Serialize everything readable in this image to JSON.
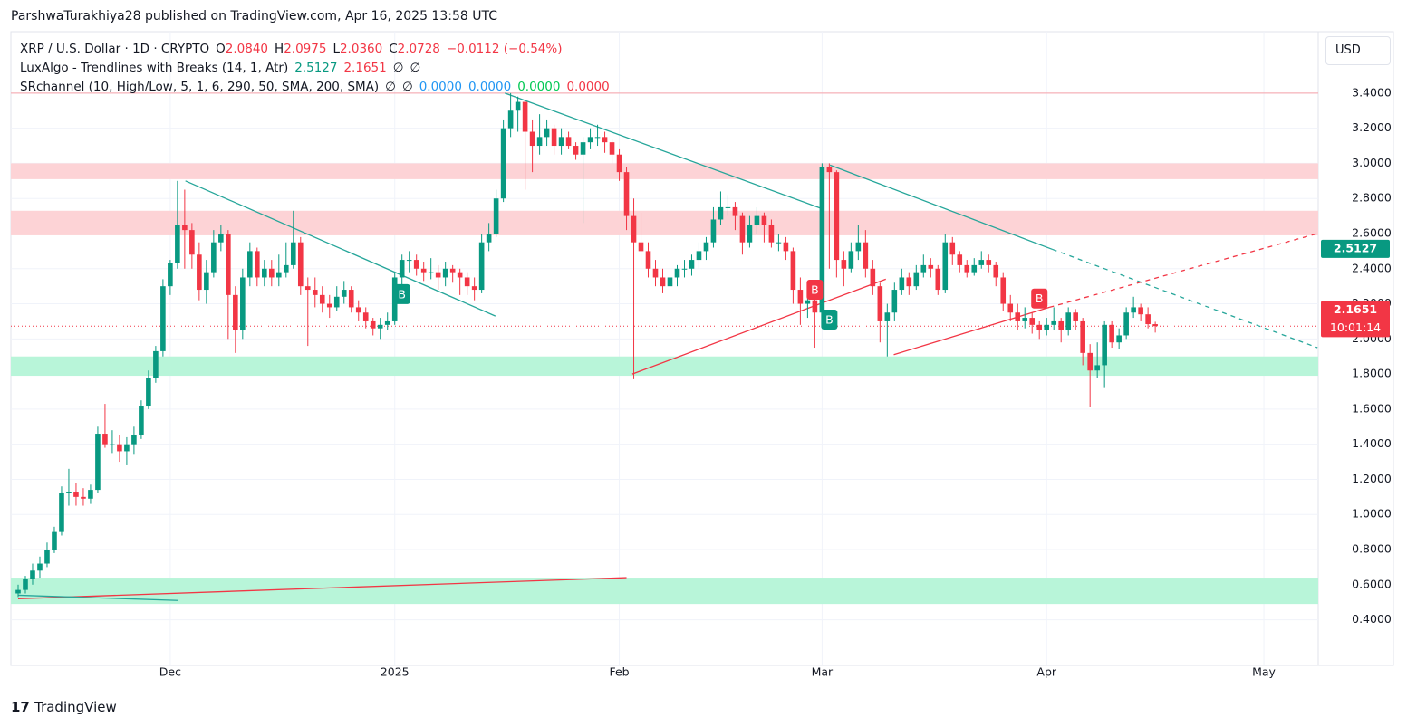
{
  "header": "ParshwaTurakhiya28 published on TradingView.com, Apr 16, 2025 13:58 UTC",
  "footer": "TradingView",
  "currency": "USD",
  "legend": [
    [
      {
        "text": "XRP / U.S. Dollar · 1D · CRYPTO",
        "color": "#131722"
      },
      {
        "text": "O",
        "color": "#131722"
      },
      {
        "text": "2.0840",
        "color": "#f23645"
      },
      {
        "text": "H",
        "color": "#131722"
      },
      {
        "text": "2.0975",
        "color": "#f23645"
      },
      {
        "text": "L",
        "color": "#131722"
      },
      {
        "text": "2.0360",
        "color": "#f23645"
      },
      {
        "text": "C",
        "color": "#131722"
      },
      {
        "text": "2.0728",
        "color": "#f23645"
      },
      {
        "text": "−0.0112 (−0.54%)",
        "color": "#f23645"
      }
    ],
    [
      {
        "text": "LuxAlgo - Trendlines with Breaks (14, 1, Atr)",
        "color": "#131722"
      },
      {
        "text": "2.5127",
        "color": "#089981"
      },
      {
        "text": "2.1651",
        "color": "#f23645"
      },
      {
        "text": "∅",
        "color": "#131722"
      },
      {
        "text": "∅",
        "color": "#131722"
      }
    ],
    [
      {
        "text": "SRchannel (10, High/Low, 5, 1, 6, 290, 50, SMA, 200, SMA)",
        "color": "#131722"
      },
      {
        "text": "∅",
        "color": "#131722"
      },
      {
        "text": "∅",
        "color": "#131722"
      },
      {
        "text": "0.0000",
        "color": "#2196f3"
      },
      {
        "text": "0.0000",
        "color": "#2196f3"
      },
      {
        "text": "0.0000",
        "color": "#00c853"
      },
      {
        "text": "0.0000",
        "color": "#f23645"
      }
    ]
  ],
  "chart_data": {
    "type": "candlestick",
    "up_color": "#089981",
    "down_color": "#f23645",
    "candles": [
      [
        0.55,
        0.6,
        0.53,
        0.57
      ],
      [
        0.57,
        0.65,
        0.55,
        0.63
      ],
      [
        0.63,
        0.72,
        0.6,
        0.68
      ],
      [
        0.68,
        0.76,
        0.64,
        0.72
      ],
      [
        0.72,
        0.84,
        0.7,
        0.8
      ],
      [
        0.8,
        0.93,
        0.78,
        0.9
      ],
      [
        0.9,
        1.16,
        0.88,
        1.12
      ],
      [
        1.12,
        1.26,
        1.05,
        1.13
      ],
      [
        1.13,
        1.18,
        1.05,
        1.1
      ],
      [
        1.1,
        1.15,
        1.05,
        1.09
      ],
      [
        1.09,
        1.17,
        1.06,
        1.14
      ],
      [
        1.14,
        1.5,
        1.12,
        1.46
      ],
      [
        1.46,
        1.63,
        1.38,
        1.4
      ],
      [
        1.4,
        1.48,
        1.35,
        1.4
      ],
      [
        1.4,
        1.45,
        1.3,
        1.36
      ],
      [
        1.36,
        1.44,
        1.28,
        1.4
      ],
      [
        1.4,
        1.5,
        1.34,
        1.45
      ],
      [
        1.45,
        1.65,
        1.43,
        1.62
      ],
      [
        1.62,
        1.82,
        1.6,
        1.78
      ],
      [
        1.78,
        1.96,
        1.75,
        1.93
      ],
      [
        1.93,
        2.34,
        1.9,
        2.3
      ],
      [
        2.3,
        2.45,
        2.25,
        2.43
      ],
      [
        2.43,
        2.9,
        2.4,
        2.65
      ],
      [
        2.65,
        2.85,
        2.4,
        2.62
      ],
      [
        2.62,
        2.66,
        2.4,
        2.48
      ],
      [
        2.48,
        2.55,
        2.22,
        2.28
      ],
      [
        2.28,
        2.45,
        2.2,
        2.38
      ],
      [
        2.38,
        2.62,
        2.35,
        2.55
      ],
      [
        2.55,
        2.65,
        2.5,
        2.6
      ],
      [
        2.6,
        2.62,
        2.0,
        2.25
      ],
      [
        2.25,
        2.3,
        1.92,
        2.05
      ],
      [
        2.05,
        2.4,
        2.0,
        2.35
      ],
      [
        2.35,
        2.55,
        2.3,
        2.5
      ],
      [
        2.5,
        2.52,
        2.3,
        2.35
      ],
      [
        2.35,
        2.45,
        2.3,
        2.4
      ],
      [
        2.4,
        2.45,
        2.3,
        2.35
      ],
      [
        2.35,
        2.48,
        2.3,
        2.38
      ],
      [
        2.38,
        2.55,
        2.35,
        2.42
      ],
      [
        2.42,
        2.73,
        2.4,
        2.55
      ],
      [
        2.55,
        2.58,
        2.25,
        2.3
      ],
      [
        2.3,
        2.35,
        1.96,
        2.28
      ],
      [
        2.28,
        2.35,
        2.18,
        2.25
      ],
      [
        2.25,
        2.3,
        2.15,
        2.2
      ],
      [
        2.2,
        2.25,
        2.12,
        2.18
      ],
      [
        2.18,
        2.3,
        2.16,
        2.24
      ],
      [
        2.24,
        2.33,
        2.2,
        2.28
      ],
      [
        2.28,
        2.3,
        2.15,
        2.18
      ],
      [
        2.18,
        2.22,
        2.1,
        2.15
      ],
      [
        2.15,
        2.18,
        2.06,
        2.1
      ],
      [
        2.1,
        2.12,
        2.02,
        2.06
      ],
      [
        2.06,
        2.12,
        2.0,
        2.08
      ],
      [
        2.08,
        2.15,
        2.05,
        2.1
      ],
      [
        2.1,
        2.38,
        2.08,
        2.35
      ],
      [
        2.35,
        2.48,
        2.3,
        2.45
      ],
      [
        2.45,
        2.5,
        2.38,
        2.45
      ],
      [
        2.45,
        2.48,
        2.36,
        2.4
      ],
      [
        2.4,
        2.44,
        2.33,
        2.38
      ],
      [
        2.38,
        2.46,
        2.34,
        2.38
      ],
      [
        2.38,
        2.42,
        2.28,
        2.35
      ],
      [
        2.35,
        2.44,
        2.3,
        2.4
      ],
      [
        2.4,
        2.42,
        2.32,
        2.38
      ],
      [
        2.38,
        2.4,
        2.25,
        2.35
      ],
      [
        2.35,
        2.38,
        2.25,
        2.3
      ],
      [
        2.3,
        2.35,
        2.22,
        2.28
      ],
      [
        2.28,
        2.6,
        2.26,
        2.55
      ],
      [
        2.55,
        2.66,
        2.5,
        2.6
      ],
      [
        2.6,
        2.85,
        2.58,
        2.8
      ],
      [
        2.8,
        3.25,
        2.78,
        3.2
      ],
      [
        3.2,
        3.4,
        3.15,
        3.3
      ],
      [
        3.3,
        3.38,
        3.18,
        3.35
      ],
      [
        3.35,
        3.36,
        2.85,
        3.18
      ],
      [
        3.18,
        3.25,
        2.95,
        3.1
      ],
      [
        3.1,
        3.28,
        3.05,
        3.15
      ],
      [
        3.15,
        3.25,
        3.1,
        3.2
      ],
      [
        3.2,
        3.22,
        3.05,
        3.1
      ],
      [
        3.1,
        3.2,
        3.05,
        3.15
      ],
      [
        3.15,
        3.18,
        3.08,
        3.1
      ],
      [
        3.1,
        3.12,
        3.02,
        3.05
      ],
      [
        3.05,
        3.15,
        2.66,
        3.12
      ],
      [
        3.12,
        3.2,
        3.08,
        3.15
      ],
      [
        3.15,
        3.22,
        3.1,
        3.15
      ],
      [
        3.15,
        3.18,
        3.06,
        3.12
      ],
      [
        3.12,
        3.14,
        3.0,
        3.05
      ],
      [
        3.05,
        3.08,
        2.9,
        2.95
      ],
      [
        2.95,
        2.98,
        2.62,
        2.7
      ],
      [
        2.7,
        2.8,
        1.77,
        2.55
      ],
      [
        2.55,
        2.72,
        2.42,
        2.5
      ],
      [
        2.5,
        2.55,
        2.35,
        2.4
      ],
      [
        2.4,
        2.45,
        2.3,
        2.35
      ],
      [
        2.35,
        2.4,
        2.26,
        2.3
      ],
      [
        2.3,
        2.38,
        2.28,
        2.35
      ],
      [
        2.35,
        2.42,
        2.3,
        2.4
      ],
      [
        2.4,
        2.45,
        2.35,
        2.4
      ],
      [
        2.4,
        2.48,
        2.36,
        2.45
      ],
      [
        2.45,
        2.55,
        2.4,
        2.5
      ],
      [
        2.5,
        2.58,
        2.45,
        2.55
      ],
      [
        2.55,
        2.75,
        2.52,
        2.68
      ],
      [
        2.68,
        2.84,
        2.65,
        2.75
      ],
      [
        2.75,
        2.82,
        2.7,
        2.75
      ],
      [
        2.75,
        2.78,
        2.62,
        2.7
      ],
      [
        2.7,
        2.72,
        2.48,
        2.55
      ],
      [
        2.55,
        2.7,
        2.52,
        2.65
      ],
      [
        2.65,
        2.75,
        2.6,
        2.7
      ],
      [
        2.7,
        2.72,
        2.55,
        2.65
      ],
      [
        2.65,
        2.68,
        2.52,
        2.55
      ],
      [
        2.55,
        2.6,
        2.5,
        2.55
      ],
      [
        2.55,
        2.58,
        2.45,
        2.5
      ],
      [
        2.5,
        2.52,
        2.2,
        2.28
      ],
      [
        2.28,
        2.35,
        2.08,
        2.2
      ],
      [
        2.2,
        2.28,
        2.12,
        2.22
      ],
      [
        2.22,
        2.25,
        1.95,
        2.15
      ],
      [
        2.15,
        3.0,
        2.12,
        2.98
      ],
      [
        2.98,
        3.0,
        2.4,
        2.95
      ],
      [
        2.95,
        2.96,
        2.35,
        2.45
      ],
      [
        2.45,
        2.5,
        2.3,
        2.4
      ],
      [
        2.4,
        2.55,
        2.38,
        2.5
      ],
      [
        2.5,
        2.65,
        2.45,
        2.55
      ],
      [
        2.55,
        2.62,
        2.35,
        2.4
      ],
      [
        2.4,
        2.45,
        2.25,
        2.3
      ],
      [
        2.3,
        2.32,
        1.98,
        2.1
      ],
      [
        2.1,
        2.2,
        1.9,
        2.15
      ],
      [
        2.15,
        2.32,
        2.1,
        2.28
      ],
      [
        2.28,
        2.4,
        2.25,
        2.35
      ],
      [
        2.35,
        2.38,
        2.25,
        2.3
      ],
      [
        2.3,
        2.42,
        2.28,
        2.38
      ],
      [
        2.38,
        2.48,
        2.35,
        2.42
      ],
      [
        2.42,
        2.46,
        2.35,
        2.4
      ],
      [
        2.4,
        2.42,
        2.25,
        2.28
      ],
      [
        2.28,
        2.6,
        2.26,
        2.55
      ],
      [
        2.55,
        2.58,
        2.42,
        2.48
      ],
      [
        2.48,
        2.5,
        2.38,
        2.42
      ],
      [
        2.42,
        2.45,
        2.35,
        2.38
      ],
      [
        2.38,
        2.46,
        2.36,
        2.42
      ],
      [
        2.42,
        2.5,
        2.4,
        2.45
      ],
      [
        2.45,
        2.48,
        2.38,
        2.42
      ],
      [
        2.42,
        2.44,
        2.3,
        2.35
      ],
      [
        2.35,
        2.38,
        2.16,
        2.2
      ],
      [
        2.2,
        2.25,
        2.1,
        2.15
      ],
      [
        2.15,
        2.2,
        2.05,
        2.1
      ],
      [
        2.1,
        2.18,
        2.06,
        2.12
      ],
      [
        2.12,
        2.15,
        2.03,
        2.08
      ],
      [
        2.08,
        2.1,
        2.0,
        2.05
      ],
      [
        2.05,
        2.12,
        2.02,
        2.08
      ],
      [
        2.08,
        2.18,
        2.05,
        2.1
      ],
      [
        2.1,
        2.12,
        1.98,
        2.05
      ],
      [
        2.05,
        2.18,
        2.02,
        2.15
      ],
      [
        2.15,
        2.17,
        2.05,
        2.1
      ],
      [
        2.1,
        2.12,
        1.85,
        1.92
      ],
      [
        1.92,
        1.97,
        1.61,
        1.82
      ],
      [
        1.82,
        1.98,
        1.78,
        1.85
      ],
      [
        1.85,
        2.1,
        1.72,
        2.08
      ],
      [
        2.08,
        2.1,
        1.95,
        1.98
      ],
      [
        1.98,
        2.06,
        1.94,
        2.02
      ],
      [
        2.02,
        2.18,
        2.0,
        2.15
      ],
      [
        2.15,
        2.24,
        2.12,
        2.18
      ],
      [
        2.18,
        2.2,
        2.1,
        2.14
      ],
      [
        2.14,
        2.18,
        2.06,
        2.084
      ],
      [
        2.084,
        2.0975,
        2.036,
        2.0728
      ]
    ],
    "xlim": [
      -1,
      179.5
    ],
    "xticks": [
      {
        "value": 21,
        "label": "Dec"
      },
      {
        "value": 52,
        "label": "2025"
      },
      {
        "value": 83,
        "label": "Feb"
      },
      {
        "value": 111,
        "label": "Mar"
      },
      {
        "value": 142,
        "label": "Apr"
      },
      {
        "value": 172,
        "label": "May"
      }
    ],
    "ylim": [
      0.14,
      3.75
    ],
    "yticks": [
      {
        "value": 0.4,
        "label": "0.4000"
      },
      {
        "value": 0.6,
        "label": "0.6000"
      },
      {
        "value": 0.8,
        "label": "0.8000"
      },
      {
        "value": 1.0,
        "label": "1.0000"
      },
      {
        "value": 1.2,
        "label": "1.2000"
      },
      {
        "value": 1.4,
        "label": "1.4000"
      },
      {
        "value": 1.6,
        "label": "1.6000"
      },
      {
        "value": 1.8,
        "label": "1.8000"
      },
      {
        "value": 2.0,
        "label": "2.0000"
      },
      {
        "value": 2.2,
        "label": "2.2000"
      },
      {
        "value": 2.4,
        "label": "2.4000"
      },
      {
        "value": 2.6,
        "label": "2.6000"
      },
      {
        "value": 2.8,
        "label": "2.8000"
      },
      {
        "value": 3.0,
        "label": "3.0000"
      },
      {
        "value": 3.2,
        "label": "3.2000"
      },
      {
        "value": 3.4,
        "label": "3.4000"
      }
    ],
    "grid": true,
    "zones": [
      {
        "range": [
          2.91,
          3.0
        ],
        "color": "#fdd3d6"
      },
      {
        "range": [
          2.59,
          2.73
        ],
        "color": "#fdd3d6"
      },
      {
        "range": [
          1.79,
          1.9
        ],
        "color": "#b8f5d9"
      },
      {
        "range": [
          0.49,
          0.64
        ],
        "color": "#b8f5d9"
      }
    ],
    "hlines": [
      {
        "value": 3.4,
        "color": "#f7a1a8",
        "dash": false
      },
      {
        "value": 2.0728,
        "color": "#f23645",
        "dash": true
      }
    ],
    "trendlines": [
      {
        "color": "#26a69a",
        "dash": false,
        "points": [
          [
            23.1,
            2.9
          ],
          [
            65.9,
            2.13
          ]
        ]
      },
      {
        "color": "#26a69a",
        "dash": false,
        "points": [
          [
            67.2,
            3.4
          ],
          [
            111.1,
            2.74
          ]
        ]
      },
      {
        "color": "#26a69a",
        "dash": false,
        "points": [
          [
            112.1,
            2.99
          ],
          [
            142.8,
            2.51
          ]
        ]
      },
      {
        "color": "#26a69a",
        "dash": true,
        "points": [
          [
            142.8,
            2.51
          ],
          [
            179.4,
            1.95
          ]
        ]
      },
      {
        "color": "#f23645",
        "dash": false,
        "points": [
          [
            84.8,
            1.8
          ],
          [
            119.8,
            2.34
          ]
        ]
      },
      {
        "color": "#f23645",
        "dash": false,
        "points": [
          [
            120.9,
            1.91
          ],
          [
            142.4,
            2.18
          ]
        ]
      },
      {
        "color": "#f23645",
        "dash": true,
        "points": [
          [
            142.4,
            2.18
          ],
          [
            179.4,
            2.6
          ]
        ]
      },
      {
        "color": "#f23645",
        "dash": false,
        "points": [
          [
            0,
            0.52
          ],
          [
            84,
            0.64
          ]
        ]
      },
      {
        "color": "#26a69a",
        "dash": false,
        "points": [
          [
            0,
            0.54
          ],
          [
            22.1,
            0.51
          ]
        ]
      }
    ],
    "signals": [
      {
        "label": "B",
        "index": 53,
        "value": 2.255,
        "color": "#089981"
      },
      {
        "label": "B",
        "index": 112,
        "value": 2.11,
        "color": "#089981"
      },
      {
        "label": "B",
        "index": 110,
        "value": 2.28,
        "color": "#f23645"
      },
      {
        "label": "B",
        "index": 141,
        "value": 2.23,
        "color": "#f23645"
      }
    ],
    "price_labels": [
      {
        "value": 2.5127,
        "color": "#089981"
      },
      {
        "value": 2.1651,
        "color": "#f23645"
      }
    ],
    "countdown": "10:01:14"
  }
}
